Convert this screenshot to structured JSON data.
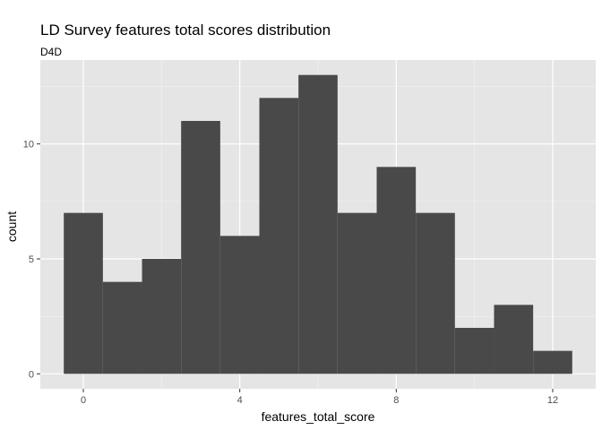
{
  "chart_data": {
    "type": "bar",
    "title": "LD Survey features total scores distribution",
    "subtitle": "D4D",
    "xlabel": "features_total_score",
    "ylabel": "count",
    "bins": [
      {
        "x": 0,
        "count": 7
      },
      {
        "x": 1,
        "count": 4
      },
      {
        "x": 2,
        "count": 5
      },
      {
        "x": 3,
        "count": 11
      },
      {
        "x": 4,
        "count": 6
      },
      {
        "x": 5,
        "count": 12
      },
      {
        "x": 6,
        "count": 13
      },
      {
        "x": 7,
        "count": 7
      },
      {
        "x": 8,
        "count": 9
      },
      {
        "x": 9,
        "count": 7
      },
      {
        "x": 10,
        "count": 2
      },
      {
        "x": 11,
        "count": 3
      },
      {
        "x": 12,
        "count": 1
      }
    ],
    "binwidth": 1,
    "xlim": [
      -1.1,
      13.1
    ],
    "ylim": [
      -0.65,
      13.65
    ],
    "xticks": [
      0,
      4,
      8,
      12
    ],
    "yticks": [
      0,
      5,
      10
    ],
    "grid": true,
    "colors": {
      "bar": "#494949",
      "panel": "#e5e5e5",
      "grid_major": "#ffffff",
      "grid_minor": "#f2f2f2",
      "tick_label": "#4d4d4d"
    }
  }
}
